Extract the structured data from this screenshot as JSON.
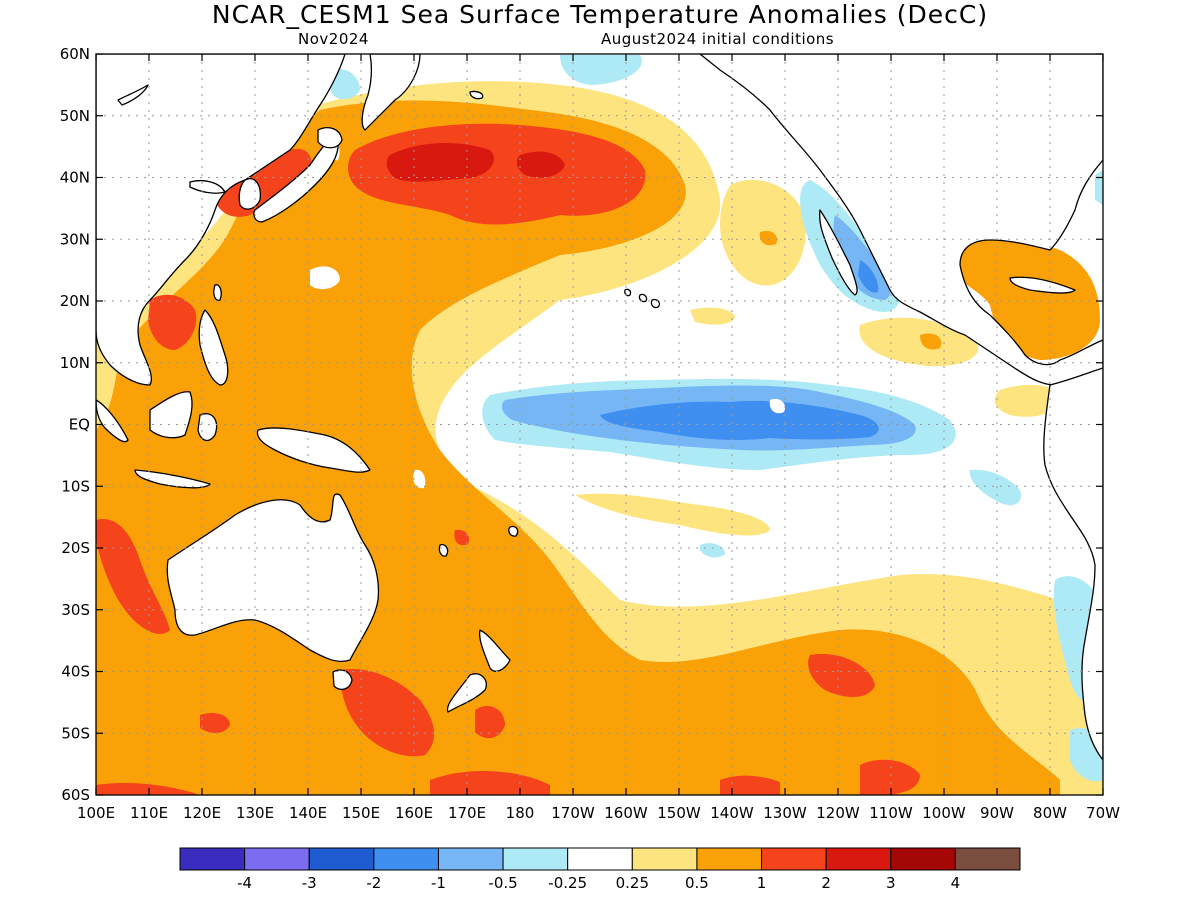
{
  "title": "NCAR_CESM1 Sea Surface Temperature Anomalies (DecC)",
  "valid_month": "Nov2024",
  "initial_conditions": "August2024 initial conditions",
  "map": {
    "lat_labels": [
      "60N",
      "50N",
      "40N",
      "30N",
      "20N",
      "10N",
      "EQ",
      "10S",
      "20S",
      "30S",
      "40S",
      "50S",
      "60S"
    ],
    "lon_labels": [
      "100E",
      "110E",
      "120E",
      "130E",
      "140E",
      "150E",
      "160E",
      "170E",
      "180",
      "170W",
      "160W",
      "150W",
      "140W",
      "130W",
      "120W",
      "110W",
      "100W",
      "90W",
      "80W",
      "70W"
    ]
  },
  "colorbar": {
    "colors": [
      "#3a2cbf",
      "#7c6cf0",
      "#1f5bd1",
      "#3f8ff0",
      "#77b6f5",
      "#aeeaf5",
      "#ffffff",
      "#fde47f",
      "#fba108",
      "#f5431b",
      "#d9180f",
      "#a50707",
      "#7a4d3f"
    ],
    "labels": [
      "-4",
      "-3",
      "-2",
      "-1",
      "-0.5",
      "-0.25",
      "0.25",
      "0.5",
      "1",
      "2",
      "3",
      "4"
    ]
  }
}
